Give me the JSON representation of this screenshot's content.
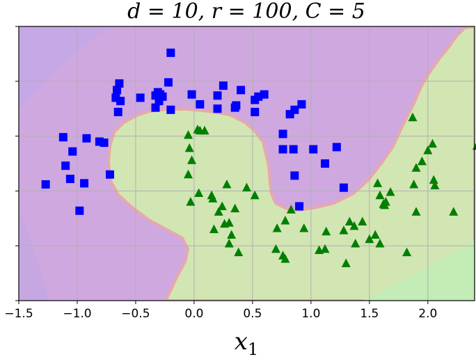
{
  "chart_data": {
    "type": "scatter",
    "title": "d = 10, r = 100, C = 5",
    "xlabel": "x1",
    "ylabel": "",
    "xlim": [
      -1.5,
      2.4
    ],
    "ylim": [
      -1.0,
      1.5
    ],
    "x_ticks": [
      -1.5,
      -1.0,
      -0.5,
      0.0,
      0.5,
      1.0,
      1.5,
      2.0
    ],
    "x_tick_labels": [
      "−1.5",
      "−1.0",
      "−0.5",
      "0.0",
      "0.5",
      "1.0",
      "1.5",
      "2.0"
    ],
    "y_ticks": [
      -1.0,
      -0.5,
      0.0,
      0.5,
      1.0,
      1.5
    ],
    "y_tick_labels_visible": false,
    "grid": true,
    "background_regions": {
      "class0_color": "#cfa8e0",
      "class1_color": "#d2e6b4",
      "boundary_color": "#e8a9a9"
    },
    "series": [
      {
        "marker": "square",
        "color": "#0000ff",
        "points": [
          [
            -0.2,
            1.26
          ],
          [
            -0.67,
            0.85
          ],
          [
            -0.66,
            0.92
          ],
          [
            -0.64,
            0.98
          ],
          [
            -0.63,
            0.82
          ],
          [
            -0.65,
            0.72
          ],
          [
            -0.46,
            0.85
          ],
          [
            -0.33,
            0.87
          ],
          [
            -0.29,
            0.88
          ],
          [
            -0.31,
            0.9
          ],
          [
            -0.27,
            0.86
          ],
          [
            -0.22,
            0.99
          ],
          [
            -0.3,
            0.82
          ],
          [
            -0.33,
            0.76
          ],
          [
            -0.2,
            0.74
          ],
          [
            -0.02,
            0.88
          ],
          [
            0.05,
            0.79
          ],
          [
            0.2,
            0.87
          ],
          [
            0.2,
            0.75
          ],
          [
            0.25,
            0.96
          ],
          [
            0.35,
            0.76
          ],
          [
            0.36,
            0.78
          ],
          [
            0.4,
            0.92
          ],
          [
            0.52,
            0.72
          ],
          [
            0.52,
            0.83
          ],
          [
            0.55,
            0.86
          ],
          [
            0.6,
            0.88
          ],
          [
            0.82,
            0.7
          ],
          [
            0.86,
            0.74
          ],
          [
            0.92,
            0.79
          ],
          [
            0.76,
            0.52
          ],
          [
            0.76,
            0.38
          ],
          [
            0.85,
            0.38
          ],
          [
            1.02,
            0.38
          ],
          [
            1.12,
            0.25
          ],
          [
            1.22,
            0.4
          ],
          [
            1.28,
            0.03
          ],
          [
            0.86,
            0.14
          ],
          [
            0.9,
            -0.14
          ],
          [
            -1.12,
            0.49
          ],
          [
            -0.92,
            0.48
          ],
          [
            -0.81,
            0.45
          ],
          [
            -0.77,
            0.44
          ],
          [
            -1.04,
            0.36
          ],
          [
            -1.1,
            0.23
          ],
          [
            -1.06,
            0.11
          ],
          [
            -0.94,
            0.07
          ],
          [
            -1.27,
            0.06
          ],
          [
            -0.72,
            0.15
          ],
          [
            -0.98,
            -0.18
          ]
        ]
      },
      {
        "marker": "triangle",
        "color": "#007f00",
        "points": [
          [
            0.09,
            0.55
          ],
          [
            0.03,
            0.56
          ],
          [
            0.05,
            0.55
          ],
          [
            -0.05,
            0.51
          ],
          [
            -0.04,
            0.39
          ],
          [
            -0.02,
            0.28
          ],
          [
            -0.05,
            0.15
          ],
          [
            -0.03,
            -0.1
          ],
          [
            0.04,
            -0.02
          ],
          [
            0.15,
            -0.04
          ],
          [
            0.16,
            -0.07
          ],
          [
            0.28,
            0.06
          ],
          [
            0.45,
            0.03
          ],
          [
            0.52,
            -0.04
          ],
          [
            0.24,
            -0.14
          ],
          [
            0.26,
            -0.3
          ],
          [
            0.21,
            -0.19
          ],
          [
            0.35,
            -0.16
          ],
          [
            0.3,
            -0.29
          ],
          [
            0.17,
            -0.35
          ],
          [
            0.32,
            -0.4
          ],
          [
            0.3,
            -0.48
          ],
          [
            0.38,
            -0.56
          ],
          [
            0.71,
            -0.34
          ],
          [
            0.78,
            -0.27
          ],
          [
            0.83,
            -0.17
          ],
          [
            0.94,
            -0.34
          ],
          [
            0.7,
            -0.53
          ],
          [
            0.76,
            -0.59
          ],
          [
            1.07,
            -0.54
          ],
          [
            1.12,
            -0.53
          ],
          [
            1.13,
            -0.37
          ],
          [
            1.28,
            -0.36
          ],
          [
            1.33,
            -0.28
          ],
          [
            1.37,
            -0.32
          ],
          [
            1.44,
            -0.28
          ],
          [
            1.5,
            -0.44
          ],
          [
            1.55,
            -0.4
          ],
          [
            1.38,
            -0.48
          ],
          [
            1.57,
            0.07
          ],
          [
            1.62,
            -0.12
          ],
          [
            1.64,
            -0.1
          ],
          [
            1.63,
            -0.13
          ],
          [
            1.68,
            -0.01
          ],
          [
            1.59,
            -0.04
          ],
          [
            1.82,
            -0.56
          ],
          [
            1.9,
            -0.19
          ],
          [
            1.87,
            0.67
          ],
          [
            2.04,
            0.43
          ],
          [
            2.0,
            0.37
          ],
          [
            2.05,
            0.1
          ],
          [
            2.06,
            0.05
          ],
          [
            2.22,
            -0.19
          ],
          [
            2.42,
            0.41
          ],
          [
            1.9,
            0.21
          ],
          [
            1.95,
            0.27
          ],
          [
            1.88,
            0.06
          ],
          [
            1.59,
            -0.48
          ],
          [
            1.3,
            -0.66
          ],
          [
            0.78,
            -0.62
          ]
        ]
      }
    ]
  }
}
